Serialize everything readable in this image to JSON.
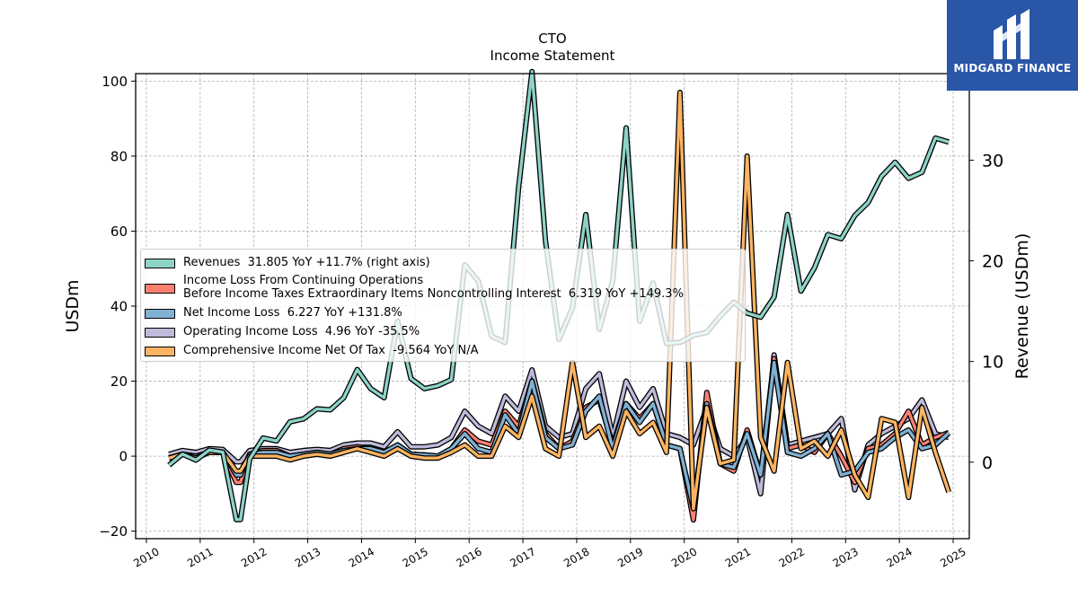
{
  "brand": {
    "name": "MIDGARD FINANCE",
    "color": "#2a56a8"
  },
  "chart_data": {
    "type": "line",
    "title": "CTO",
    "subtitle": "Income Statement",
    "ylabel": "USDm",
    "y2label": "Revenue (USDm)",
    "ylim": [
      -22,
      102
    ],
    "y2lim": [
      -7.6,
      38.6
    ],
    "yticks": [
      -20,
      0,
      20,
      40,
      60,
      80,
      100
    ],
    "y2ticks": [
      0,
      10,
      20,
      30
    ],
    "xlim": [
      2009.8,
      2025.3
    ],
    "xticks": [
      "2010",
      "2011",
      "2012",
      "2013",
      "2014",
      "2015",
      "2016",
      "2017",
      "2018",
      "2019",
      "2020",
      "2021",
      "2022",
      "2023",
      "2024",
      "2025"
    ],
    "grid": true,
    "legend_position": "center-left",
    "x": [
      2010.42,
      2010.67,
      2010.92,
      2011.17,
      2011.42,
      2011.67,
      2011.75,
      2011.92,
      2012.17,
      2012.42,
      2012.67,
      2012.92,
      2013.17,
      2013.42,
      2013.67,
      2013.92,
      2014.17,
      2014.42,
      2014.67,
      2014.92,
      2015.17,
      2015.42,
      2015.67,
      2015.92,
      2016.17,
      2016.42,
      2016.67,
      2016.92,
      2017.17,
      2017.42,
      2017.67,
      2017.92,
      2018.17,
      2018.42,
      2018.67,
      2018.92,
      2019.17,
      2019.42,
      2019.67,
      2019.92,
      2020.17,
      2020.42,
      2020.67,
      2020.92,
      2021.17,
      2021.42,
      2021.67,
      2021.92,
      2022.17,
      2022.42,
      2022.67,
      2022.92,
      2023.17,
      2023.42,
      2023.67,
      2023.92,
      2024.17,
      2024.42,
      2024.67,
      2024.92
    ],
    "series": [
      {
        "name": "Revenues",
        "legend": "Revenues  31.805 YoY +11.7% (right axis)",
        "axis": "right",
        "color": "#8dd3c7",
        "values": [
          -0.3,
          0.8,
          0.2,
          1.2,
          1.0,
          -5.7,
          -5.7,
          0.3,
          2.4,
          2.1,
          4.0,
          4.3,
          5.3,
          5.2,
          6.4,
          9.2,
          7.3,
          6.4,
          14.0,
          8.3,
          7.3,
          7.6,
          8.2,
          19.6,
          18.0,
          12.5,
          11.9,
          27.3,
          38.8,
          22.0,
          12.2,
          15.3,
          24.6,
          13.2,
          18.0,
          33.2,
          14.0,
          17.8,
          11.8,
          11.9,
          12.6,
          12.9,
          14.5,
          15.9,
          14.8,
          14.4,
          16.4,
          24.6,
          17.0,
          19.3,
          22.6,
          22.2,
          24.5,
          25.8,
          28.4,
          29.8,
          28.2,
          28.8,
          32.2,
          31.8
        ]
      },
      {
        "name": "Income Loss From Continuing Operations Before Income Taxes Extraordinary Items Noncontrolling Interest",
        "legend": "Income Loss From Continuing Operations\nBefore Income Taxes Extraordinary Items Noncontrolling Interest  6.319 YoY +149.3%",
        "axis": "left",
        "color": "#fb8072",
        "values": [
          -0.5,
          0.5,
          0,
          1,
          1,
          -7,
          -7,
          0.5,
          1.5,
          1.5,
          0,
          0.5,
          1,
          0.5,
          2,
          2.5,
          2,
          1,
          3,
          0.5,
          0.3,
          0,
          2,
          7,
          4,
          3,
          12,
          8,
          20,
          6,
          2,
          4,
          13,
          15,
          3,
          14,
          10,
          14,
          3,
          2,
          -17,
          17,
          -2,
          -4,
          7,
          -5,
          26,
          2,
          3,
          1,
          6,
          0,
          -7,
          2,
          3,
          6,
          12,
          3,
          5,
          6.3
        ]
      },
      {
        "name": "Net Income Loss",
        "legend": "Net Income Loss  6.227 YoY +131.8%",
        "axis": "left",
        "color": "#80b1d3",
        "values": [
          -0.5,
          0.5,
          0,
          1,
          1,
          -5,
          -5,
          0.5,
          1,
          1,
          0,
          0.5,
          1,
          0.5,
          1.5,
          2,
          2,
          1,
          3,
          0.5,
          0.3,
          0,
          2,
          6,
          2,
          1,
          11,
          6,
          20,
          5,
          2,
          3,
          12,
          16,
          2,
          14,
          9,
          14,
          3,
          2,
          -14,
          14,
          -2,
          -3,
          6,
          -5,
          25,
          1,
          0,
          2,
          6,
          -5,
          -4,
          1,
          2,
          5,
          7,
          2,
          3,
          6.2
        ]
      },
      {
        "name": "Operating Income Loss",
        "legend": "Operating Income Loss  4.96 YoY -35.5%",
        "axis": "left",
        "color": "#bebada",
        "values": [
          0.5,
          1.5,
          1,
          2,
          1.8,
          -1.5,
          -1.5,
          1.5,
          2,
          2,
          1,
          1.5,
          1.8,
          1.5,
          3,
          3.5,
          3.5,
          2.5,
          6.5,
          2.5,
          2.5,
          3,
          5,
          12,
          8,
          6,
          16,
          12,
          23,
          8,
          5,
          6,
          18,
          22,
          5,
          20,
          13,
          18,
          6,
          5,
          3,
          13,
          2,
          0,
          5,
          -10,
          27,
          3,
          4,
          5,
          6,
          10,
          -9,
          3,
          6,
          8,
          10,
          15,
          6,
          5
        ]
      },
      {
        "name": "Comprehensive Income Net Of Tax",
        "legend": "Comprehensive Income Net Of Tax  -9.564 YoY N/A",
        "axis": "left",
        "color": "#fdb462",
        "values": [
          -0.5,
          0.5,
          -0.5,
          1,
          1,
          -4,
          -4,
          0,
          0,
          0,
          -1,
          0,
          0.5,
          0,
          1,
          2,
          1,
          0,
          2,
          0,
          -0.5,
          -0.5,
          1,
          3,
          0,
          0,
          8,
          5,
          16,
          2,
          0,
          25,
          5,
          8,
          0,
          12,
          6,
          9,
          1,
          97,
          -14,
          13,
          -2,
          -1,
          80,
          5,
          -4,
          25,
          2,
          4,
          0,
          7,
          -5,
          -11,
          10,
          9,
          -11,
          13,
          1,
          -9.6
        ]
      }
    ]
  }
}
